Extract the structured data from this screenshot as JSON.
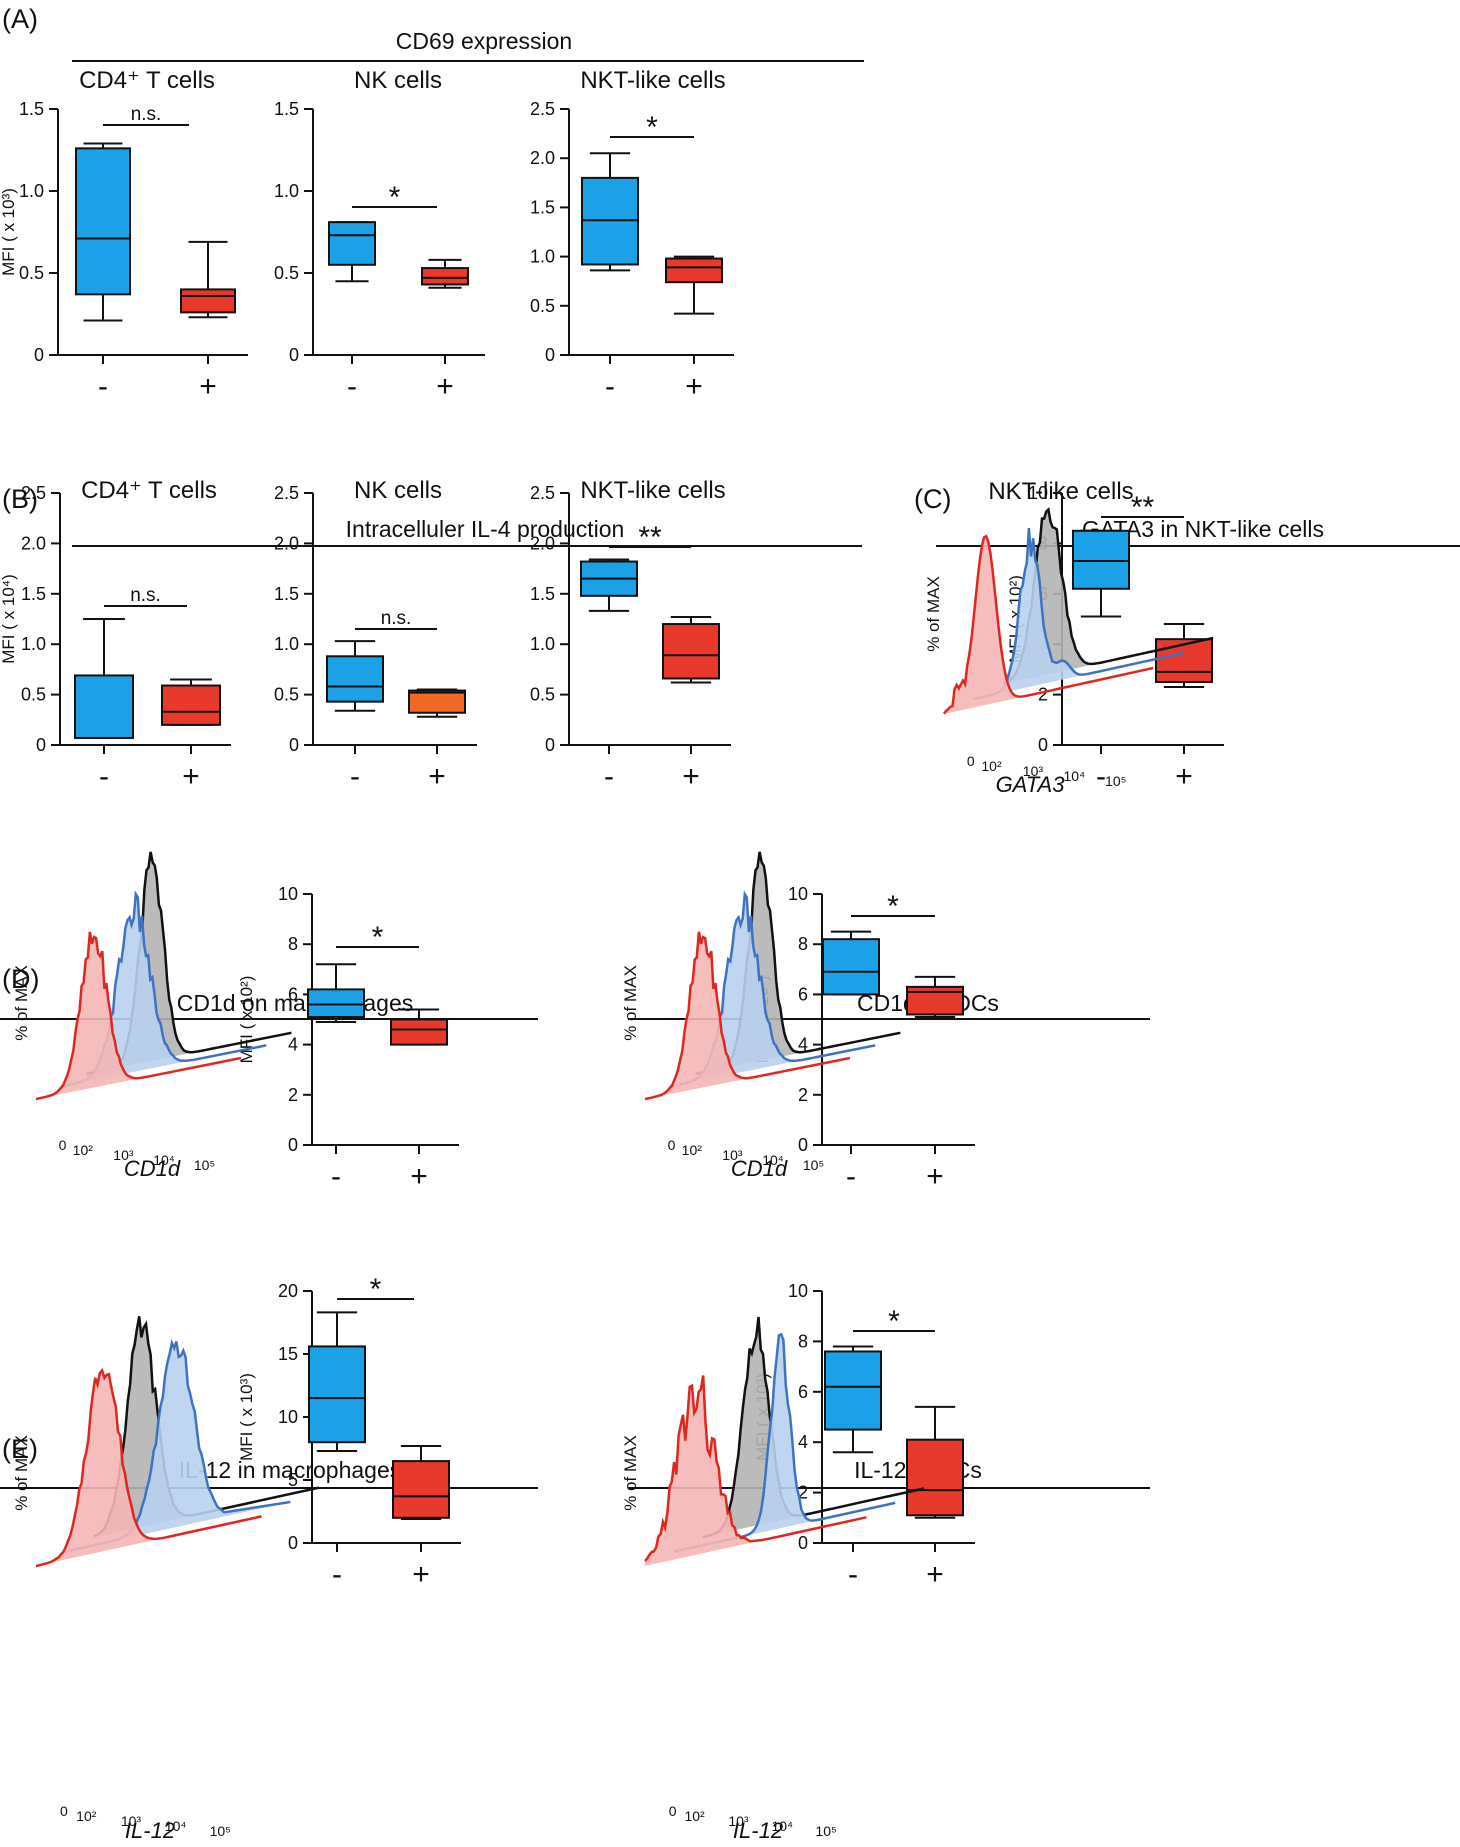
{
  "sections": [
    {
      "id": "A",
      "label": "(A)",
      "title": "CD69 expression"
    },
    {
      "id": "B",
      "label": "(B)",
      "title": "Intracelluler IL-4 production"
    },
    {
      "id": "C",
      "label": "(C)",
      "title": "GATA3 in NKT-like cells"
    },
    {
      "id": "D",
      "label": "(D)",
      "title": ""
    },
    {
      "id": "E",
      "label": "(E)",
      "title": ""
    }
  ],
  "group_titles": {
    "D_macrophages": "CD1d on macrophages",
    "D_dcs": "CD1d on DCs",
    "E_macrophages": "IL-12 in macrophages",
    "E_dcs": "IL-12 in DCs"
  },
  "colors": {
    "minus_box": "#1da1e6",
    "plus_box": "#e83a2c",
    "plus_box_alt": "#f06a26",
    "hist_black": "#111111",
    "hist_blue": "#3f73c2",
    "hist_blue_fill": "#b9d0ee",
    "hist_red": "#e0271f",
    "hist_red_fill": "#f4b7b5",
    "hist_grey_fill": "#b4b4b4"
  },
  "histograms": [
    {
      "id": "C_hist",
      "title": "NKT-like cells",
      "ylabel": "% of MAX",
      "xlabel": "GATA3",
      "ticks": [
        "0",
        "10²",
        "10³",
        "10⁴",
        "10⁵"
      ]
    },
    {
      "id": "D_mac_hist",
      "title": "",
      "ylabel": "% of MAX",
      "xlabel": "CD1d",
      "ticks": [
        "0",
        "10²",
        "10³",
        "10⁴",
        "10⁵"
      ]
    },
    {
      "id": "D_dc_hist",
      "title": "",
      "ylabel": "% of MAX",
      "xlabel": "CD1d",
      "ticks": [
        "0",
        "10²",
        "10³",
        "10⁴",
        "10⁵"
      ]
    },
    {
      "id": "E_mac_hist",
      "title": "",
      "ylabel": "% of MAX",
      "xlabel": "IL-12",
      "ticks": [
        "0",
        "10²",
        "10³",
        "10⁴",
        "10⁵"
      ]
    },
    {
      "id": "E_dc_hist",
      "title": "",
      "ylabel": "% of MAX",
      "xlabel": "IL-12",
      "ticks": [
        "0",
        "10²",
        "10³",
        "10⁴",
        "10⁵"
      ]
    }
  ],
  "chart_data": [
    {
      "id": "A1",
      "type": "box",
      "title": "CD4⁺ T cells",
      "ylabel": "MFI ( x 10³)",
      "ylim": [
        0,
        1.5
      ],
      "yticks": [
        0,
        0.5,
        1.0,
        1.5
      ],
      "ytick_labels": [
        "0",
        "0.5",
        "1.0",
        "1.5"
      ],
      "categories": [
        "-",
        "+"
      ],
      "significance": "n.s.",
      "boxes": [
        {
          "min": 0.21,
          "q1": 0.37,
          "median": 0.71,
          "q3": 1.26,
          "max": 1.29,
          "color": "#1da1e6"
        },
        {
          "min": 0.23,
          "q1": 0.26,
          "median": 0.36,
          "q3": 0.4,
          "max": 0.69,
          "color": "#e83a2c"
        }
      ]
    },
    {
      "id": "A2",
      "type": "box",
      "title": "NK cells",
      "ylabel": "",
      "ylim": [
        0,
        1.5
      ],
      "yticks": [
        0,
        0.5,
        1.0,
        1.5
      ],
      "ytick_labels": [
        "0",
        "0.5",
        "1.0",
        "1.5"
      ],
      "categories": [
        "-",
        "+"
      ],
      "significance": "*",
      "boxes": [
        {
          "min": 0.45,
          "q1": 0.55,
          "median": 0.73,
          "q3": 0.81,
          "max": 0.81,
          "color": "#1da1e6"
        },
        {
          "min": 0.41,
          "q1": 0.43,
          "median": 0.47,
          "q3": 0.53,
          "max": 0.58,
          "color": "#e83a2c"
        }
      ]
    },
    {
      "id": "A3",
      "type": "box",
      "title": "NKT-like cells",
      "ylabel": "",
      "ylim": [
        0,
        2.5
      ],
      "yticks": [
        0,
        0.5,
        1.0,
        1.5,
        2.0,
        2.5
      ],
      "ytick_labels": [
        "0",
        "0.5",
        "1.0",
        "1.5",
        "2.0",
        "2.5"
      ],
      "categories": [
        "-",
        "+"
      ],
      "significance": "*",
      "boxes": [
        {
          "min": 0.86,
          "q1": 0.92,
          "median": 1.37,
          "q3": 1.8,
          "max": 2.05,
          "color": "#1da1e6"
        },
        {
          "min": 0.42,
          "q1": 0.74,
          "median": 0.89,
          "q3": 0.98,
          "max": 1.0,
          "color": "#e83a2c"
        }
      ]
    },
    {
      "id": "B1",
      "type": "box",
      "title": "CD4⁺ T cells",
      "ylabel": "MFI ( x 10⁴)",
      "ylim": [
        0,
        2.5
      ],
      "yticks": [
        0,
        0.5,
        1.0,
        1.5,
        2.0,
        2.5
      ],
      "ytick_labels": [
        "0",
        "0.5",
        "1.0",
        "1.5",
        "2.0",
        "2.5"
      ],
      "categories": [
        "-",
        "+"
      ],
      "significance": "n.s.",
      "boxes": [
        {
          "min": 0.07,
          "q1": 0.07,
          "median": 0.07,
          "q3": 0.69,
          "max": 1.25,
          "color": "#1da1e6"
        },
        {
          "min": 0.2,
          "q1": 0.2,
          "median": 0.33,
          "q3": 0.59,
          "max": 0.65,
          "color": "#e83a2c"
        }
      ]
    },
    {
      "id": "B2",
      "type": "box",
      "title": "NK cells",
      "ylabel": "",
      "ylim": [
        0,
        2.5
      ],
      "yticks": [
        0,
        0.5,
        1.0,
        1.5,
        2.0,
        2.5
      ],
      "ytick_labels": [
        "0",
        "0.5",
        "1.0",
        "1.5",
        "2.0",
        "2.5"
      ],
      "categories": [
        "-",
        "+"
      ],
      "significance": "n.s.",
      "boxes": [
        {
          "min": 0.34,
          "q1": 0.43,
          "median": 0.58,
          "q3": 0.88,
          "max": 1.03,
          "color": "#1da1e6"
        },
        {
          "min": 0.28,
          "q1": 0.32,
          "median": 0.52,
          "q3": 0.54,
          "max": 0.55,
          "color": "#f06a26"
        }
      ]
    },
    {
      "id": "B3",
      "type": "box",
      "title": "NKT-like cells",
      "ylabel": "",
      "ylim": [
        0,
        2.5
      ],
      "yticks": [
        0,
        0.5,
        1.0,
        1.5,
        2.0,
        2.5
      ],
      "ytick_labels": [
        "0",
        "0.5",
        "1.0",
        "1.5",
        "2.0",
        "2.5"
      ],
      "categories": [
        "-",
        "+"
      ],
      "significance": "**",
      "boxes": [
        {
          "min": 1.33,
          "q1": 1.48,
          "median": 1.65,
          "q3": 1.82,
          "max": 1.84,
          "color": "#1da1e6"
        },
        {
          "min": 0.62,
          "q1": 0.66,
          "median": 0.89,
          "q3": 1.2,
          "max": 1.27,
          "color": "#e83a2c"
        }
      ]
    },
    {
      "id": "C1",
      "type": "box",
      "title": "",
      "ylabel": "MFI ( x 10²)",
      "ylim": [
        0,
        10
      ],
      "yticks": [
        0,
        2,
        4,
        6,
        8,
        10
      ],
      "ytick_labels": [
        "0",
        "2",
        "4",
        "6",
        "8",
        "10"
      ],
      "categories": [
        "-",
        "+"
      ],
      "significance": "**",
      "boxes": [
        {
          "min": 5.1,
          "q1": 6.2,
          "median": 7.3,
          "q3": 8.5,
          "max": 8.5,
          "color": "#1da1e6"
        },
        {
          "min": 2.3,
          "q1": 2.5,
          "median": 2.9,
          "q3": 4.2,
          "max": 4.8,
          "color": "#e83a2c"
        }
      ]
    },
    {
      "id": "D1",
      "type": "box",
      "title": "",
      "ylabel": "MFI ( x 10²)",
      "ylim": [
        0,
        10
      ],
      "yticks": [
        0,
        2,
        4,
        6,
        8,
        10
      ],
      "ytick_labels": [
        "0",
        "2",
        "4",
        "6",
        "8",
        "10"
      ],
      "categories": [
        "-",
        "+"
      ],
      "significance": "*",
      "boxes": [
        {
          "min": 4.9,
          "q1": 5.1,
          "median": 5.6,
          "q3": 6.2,
          "max": 7.2,
          "color": "#1da1e6"
        },
        {
          "min": 4.0,
          "q1": 4.0,
          "median": 4.6,
          "q3": 5.0,
          "max": 5.4,
          "color": "#e83a2c"
        }
      ]
    },
    {
      "id": "D2",
      "type": "box",
      "title": "",
      "ylabel": "MFI ( x 10²)",
      "ylim": [
        0,
        10
      ],
      "yticks": [
        0,
        2,
        4,
        6,
        8,
        10
      ],
      "ytick_labels": [
        "0",
        "2",
        "4",
        "6",
        "8",
        "10"
      ],
      "categories": [
        "-",
        "+"
      ],
      "significance": "*",
      "boxes": [
        {
          "min": 6.0,
          "q1": 6.0,
          "median": 6.9,
          "q3": 8.2,
          "max": 8.5,
          "color": "#1da1e6"
        },
        {
          "min": 5.1,
          "q1": 5.2,
          "median": 6.1,
          "q3": 6.3,
          "max": 6.7,
          "color": "#e83a2c"
        }
      ]
    },
    {
      "id": "E1",
      "type": "box",
      "title": "",
      "ylabel": "MFI ( x 10³)",
      "ylim": [
        0,
        20
      ],
      "yticks": [
        0,
        5,
        10,
        15,
        20
      ],
      "ytick_labels": [
        "0",
        "5",
        "10",
        "15",
        "20"
      ],
      "categories": [
        "-",
        "+"
      ],
      "significance": "*",
      "boxes": [
        {
          "min": 7.3,
          "q1": 8.0,
          "median": 11.5,
          "q3": 15.6,
          "max": 18.3,
          "color": "#1da1e6"
        },
        {
          "min": 1.9,
          "q1": 2.0,
          "median": 3.7,
          "q3": 6.5,
          "max": 7.7,
          "color": "#e83a2c"
        }
      ]
    },
    {
      "id": "E2",
      "type": "box",
      "title": "",
      "ylabel": "MFI ( x 10³)",
      "ylim": [
        0,
        10
      ],
      "yticks": [
        0,
        2,
        4,
        6,
        8,
        10
      ],
      "ytick_labels": [
        "0",
        "2",
        "4",
        "6",
        "8",
        "10"
      ],
      "categories": [
        "-",
        "+"
      ],
      "significance": "*",
      "boxes": [
        {
          "min": 3.6,
          "q1": 4.5,
          "median": 6.2,
          "q3": 7.6,
          "max": 7.8,
          "color": "#1da1e6"
        },
        {
          "min": 1.0,
          "q1": 1.1,
          "median": 2.1,
          "q3": 4.1,
          "max": 5.4,
          "color": "#e83a2c"
        }
      ]
    }
  ]
}
